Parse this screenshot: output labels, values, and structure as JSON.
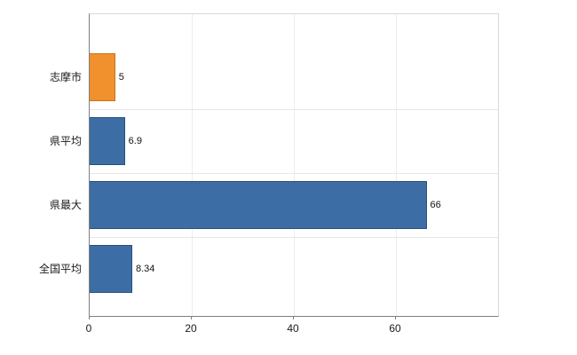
{
  "chart_data": {
    "type": "bar",
    "orientation": "horizontal",
    "title": "",
    "xlabel": "",
    "ylabel": "",
    "categories": [
      "志摩市",
      "県平均",
      "県最大",
      "全国平均"
    ],
    "values": [
      5,
      6.9,
      66,
      8.34
    ],
    "value_labels": [
      "5",
      "6.9",
      "66",
      "8.34"
    ],
    "bar_colors": [
      "#f0912e",
      "#3c6da5",
      "#3c6da5",
      "#3c6da5"
    ],
    "bar_border_colors": [
      "#c4751b",
      "#2a4f7c",
      "#2a4f7c",
      "#2a4f7c"
    ],
    "xlim": [
      0,
      80
    ],
    "x_ticks": [
      0,
      20,
      40,
      60
    ],
    "grid": true,
    "legend": "none",
    "colors": {
      "highlight_orange": "#f0912e",
      "series_blue": "#3c6da5"
    }
  }
}
